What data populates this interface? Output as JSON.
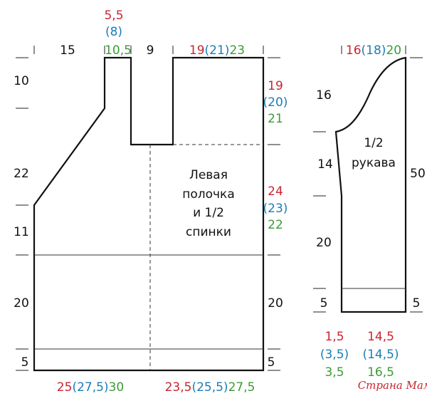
{
  "front": {
    "title_lines": [
      "Левая",
      "полочка",
      "и 1/2",
      "спинки"
    ],
    "top": {
      "side_width": "15",
      "neck_width": [
        "5,5",
        "(8)",
        "10,5"
      ],
      "neck_center": "9",
      "shoulder": [
        "19",
        "(21)",
        "23"
      ]
    },
    "left_heights": [
      "10",
      "22",
      "11",
      "20",
      "5"
    ],
    "right_heights": {
      "shoulder": [
        "19",
        "(20)",
        "21"
      ],
      "armhole": [
        "24",
        "(23)",
        "22"
      ],
      "side": "20",
      "hem": "5"
    },
    "bottom": {
      "left": [
        "25",
        "(27,5)",
        "30"
      ],
      "right": [
        "23,5",
        "(25,5)",
        "27,5"
      ]
    }
  },
  "sleeve": {
    "title_lines": [
      "1/2",
      "рукава"
    ],
    "top": [
      "16",
      "(18)",
      "20"
    ],
    "left_heights": [
      "16",
      "14",
      "20",
      "5"
    ],
    "right_heights": {
      "total": "50",
      "hem": "5"
    },
    "bottom": {
      "left": [
        "1,5",
        "(3,5)",
        "3,5"
      ],
      "right": [
        "14,5",
        "(14,5)",
        "16,5"
      ]
    }
  },
  "watermark": "Страна Мам"
}
